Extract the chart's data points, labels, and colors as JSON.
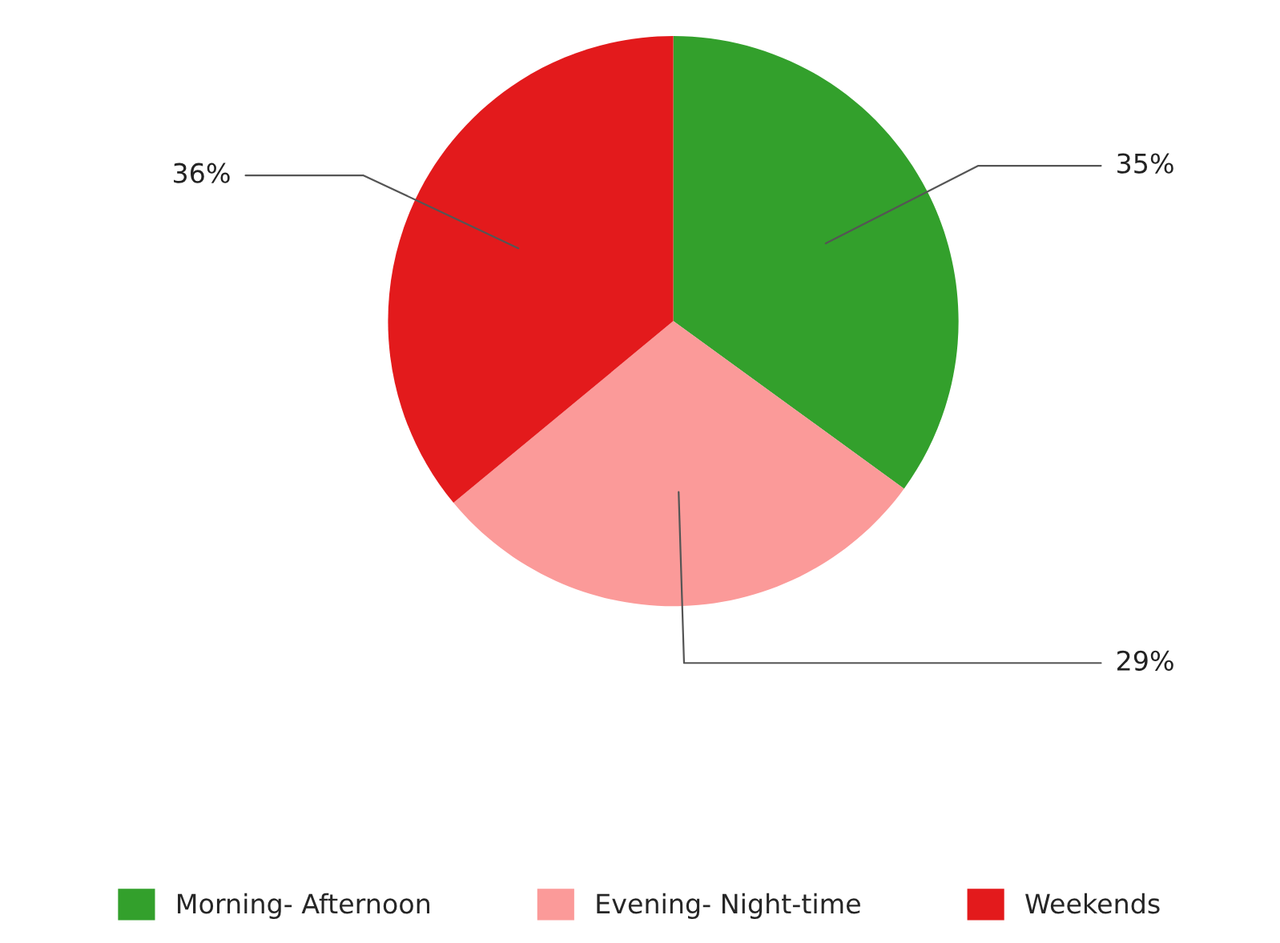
{
  "chart_data": {
    "type": "pie",
    "categories": [
      "Morning- Afternoon",
      "Evening- Night-time",
      "Weekends"
    ],
    "values": [
      35,
      29,
      36
    ],
    "colors": [
      "#33a02c",
      "#fb9a99",
      "#e31a1c"
    ],
    "value_labels": [
      "35%",
      "29%",
      "36%"
    ],
    "legend": "bottom"
  }
}
